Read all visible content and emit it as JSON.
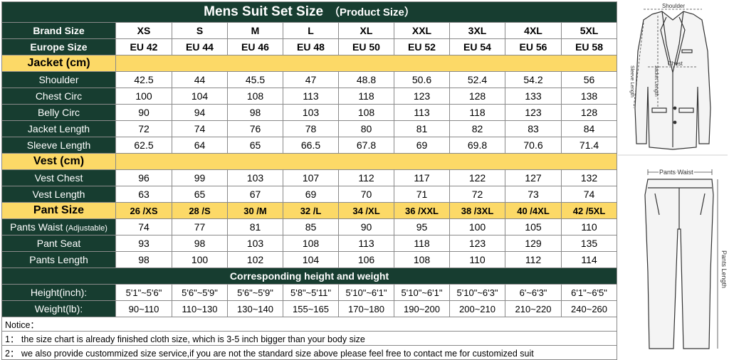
{
  "title": "Mens Suit Set Size",
  "subtitle": "（Product Size）",
  "brand_label": "Brand Size",
  "brand_sizes": [
    "XS",
    "S",
    "M",
    "L",
    "XL",
    "XXL",
    "3XL",
    "4XL",
    "5XL"
  ],
  "europe_label": "Europe Size",
  "europe_sizes": [
    "EU 42",
    "EU 44",
    "EU 46",
    "EU 48",
    "EU 50",
    "EU 52",
    "EU 54",
    "EU 56",
    "EU 58"
  ],
  "jacket": {
    "header": "Jacket  (cm)",
    "rows": [
      {
        "label": "Shoulder",
        "values": [
          "42.5",
          "44",
          "45.5",
          "47",
          "48.8",
          "50.6",
          "52.4",
          "54.2",
          "56"
        ]
      },
      {
        "label": "Chest Circ",
        "values": [
          "100",
          "104",
          "108",
          "113",
          "118",
          "123",
          "128",
          "133",
          "138"
        ]
      },
      {
        "label": "Belly Circ",
        "values": [
          "90",
          "94",
          "98",
          "103",
          "108",
          "113",
          "118",
          "123",
          "128"
        ]
      },
      {
        "label": "Jacket Length",
        "values": [
          "72",
          "74",
          "76",
          "78",
          "80",
          "81",
          "82",
          "83",
          "84"
        ]
      },
      {
        "label": "Sleeve Length",
        "values": [
          "62.5",
          "64",
          "65",
          "66.5",
          "67.8",
          "69",
          "69.8",
          "70.6",
          "71.4"
        ]
      }
    ]
  },
  "vest": {
    "header": "Vest (cm)",
    "rows": [
      {
        "label": "Vest Chest",
        "values": [
          "96",
          "99",
          "103",
          "107",
          "112",
          "117",
          "122",
          "127",
          "132"
        ]
      },
      {
        "label": "Vest Length",
        "values": [
          "63",
          "65",
          "67",
          "69",
          "70",
          "71",
          "72",
          "73",
          "74"
        ]
      }
    ]
  },
  "pant": {
    "header": "Pant Size",
    "sizes": [
      "26 /XS",
      "28 /S",
      "30 /M",
      "32 /L",
      "34 /XL",
      "36 /XXL",
      "38 /3XL",
      "40 /4XL",
      "42 /5XL"
    ],
    "rows": [
      {
        "label": "Pants Waist",
        "label_small": "(Adjustable)",
        "values": [
          "74",
          "77",
          "81",
          "85",
          "90",
          "95",
          "100",
          "105",
          "110"
        ]
      },
      {
        "label": "Pant Seat",
        "label_small": "",
        "values": [
          "93",
          "98",
          "103",
          "108",
          "113",
          "118",
          "123",
          "129",
          "135"
        ]
      },
      {
        "label": "Pants Length",
        "label_small": "",
        "values": [
          "98",
          "100",
          "102",
          "104",
          "106",
          "108",
          "110",
          "112",
          "114"
        ]
      }
    ]
  },
  "corr_header": "Corresponding height and weight",
  "height": {
    "label": "Height(inch):",
    "values": [
      "5'1\"~5'6\"",
      "5'6\"~5'9\"",
      "5'6\"~5'9\"",
      "5'8\"~5'11\"",
      "5'10\"~6'1\"",
      "5'10\"~6'1\"",
      "5'10\"~6'3\"",
      "6'~6'3\"",
      "6'1\"~6'5\""
    ]
  },
  "weight": {
    "label": "Weight(lb):",
    "values": [
      "90~110",
      "110~130",
      "130~140",
      "155~165",
      "170~180",
      "190~200",
      "200~210",
      "210~220",
      "240~260"
    ]
  },
  "notes": [
    "Notice：",
    "1： the size chart is already finished cloth size, which is 3-5 inch bigger than your body size",
    "2： we also provide custommized size service,if you are not the standard size above please feel free to contact me for customized suit"
  ],
  "illustration": {
    "jacket_shoulder": "Shoulder",
    "jacket_chest": "Chest",
    "jacket_length": "Jacket Length",
    "sleeve_length": "Sleeve Length",
    "pants_waist": "Pants Waist",
    "pants_length": "Pants Length"
  },
  "colors": {
    "dark_green": "#173d30",
    "yellow": "#fcd967"
  }
}
